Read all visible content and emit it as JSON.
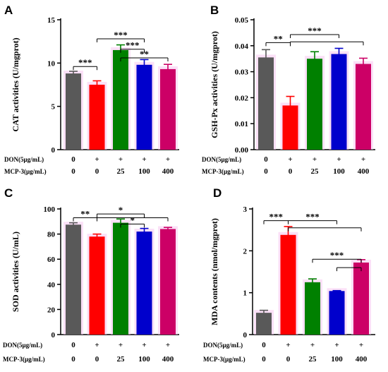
{
  "chart_data": [
    {
      "type": "bar",
      "panel": "A",
      "ylabel": "CAT activities (U/mgprot)",
      "ylim": [
        0,
        15
      ],
      "yticks": [
        "0",
        "5",
        "10",
        "15"
      ],
      "values": [
        8.8,
        7.5,
        11.5,
        9.8,
        9.3
      ],
      "errors": [
        0.25,
        0.45,
        0.6,
        0.6,
        0.55
      ],
      "colors": [
        "#595959",
        "#ff0000",
        "#008000",
        "#0000cc",
        "#cc0066"
      ],
      "significance": [
        {
          "label": "***",
          "from": 0,
          "to": 1,
          "y": 9.6
        },
        {
          "label": "***",
          "from": 1,
          "to": 3,
          "y": 12.8
        },
        {
          "label": "***",
          "from": 2,
          "to": 3,
          "y": 11.6
        },
        {
          "label": "**",
          "from": 2,
          "to": 4,
          "y": 10.6
        }
      ],
      "treatments": [
        {
          "label": "DON(5μg/mL)",
          "values": [
            "0",
            "+",
            "+",
            "+",
            "+"
          ]
        },
        {
          "label": "MCP-3(μg/mL)",
          "values": [
            "0",
            "0",
            "25",
            "100",
            "400"
          ]
        }
      ]
    },
    {
      "type": "bar",
      "panel": "B",
      "ylabel": "GSH-Px activities (U/mgprot)",
      "ylim": [
        0,
        0.05
      ],
      "yticks": [
        "0.00",
        "0.01",
        "0.02",
        "0.03",
        "0.04",
        "0.05"
      ],
      "values": [
        0.0355,
        0.017,
        0.035,
        0.0368,
        0.033
      ],
      "errors": [
        0.003,
        0.0035,
        0.0027,
        0.0022,
        0.0022
      ],
      "colors": [
        "#595959",
        "#ff0000",
        "#008000",
        "#0000cc",
        "#cc0066"
      ],
      "significance": [
        {
          "label": "**",
          "from": 0,
          "to": 1,
          "y": 0.0412
        },
        {
          "label": "***",
          "from": 1,
          "to": 3,
          "y": 0.0443
        },
        {
          "label": "",
          "from": 1,
          "to": 4,
          "y": 0.0415
        }
      ],
      "treatments": [
        {
          "label": "DON(5μg/mL)",
          "values": [
            "0",
            "+",
            "+",
            "+",
            "+"
          ]
        },
        {
          "label": "MCP-3(μg/mL)",
          "values": [
            "0",
            "0",
            "25",
            "100",
            "400"
          ]
        }
      ]
    },
    {
      "type": "bar",
      "panel": "C",
      "ylabel": "SOD activities (U/mL)",
      "ylim": [
        0,
        100
      ],
      "yticks": [
        "0",
        "20",
        "40",
        "60",
        "80",
        "100"
      ],
      "values": [
        87.5,
        78,
        89,
        82,
        84
      ],
      "errors": [
        1.5,
        2,
        3,
        2.5,
        1.3
      ],
      "colors": [
        "#595959",
        "#ff0000",
        "#008000",
        "#0000cc",
        "#cc0066"
      ],
      "significance": [
        {
          "label": "**",
          "from": 0,
          "to": 1,
          "y": 93
        },
        {
          "label": "*",
          "from": 1,
          "to": 3,
          "y": 96
        },
        {
          "label": "",
          "from": 1,
          "to": 4,
          "y": 93
        },
        {
          "label": "*",
          "from": 2,
          "to": 3,
          "y": 88
        }
      ],
      "treatments": [
        {
          "label": "DON(5μg/mL)",
          "values": [
            "0",
            "+",
            "+",
            "+",
            "+"
          ]
        },
        {
          "label": "MCP-3(μg/mL)",
          "values": [
            "0",
            "0",
            "25",
            "100",
            "400"
          ]
        }
      ]
    },
    {
      "type": "bar",
      "panel": "D",
      "ylabel": "MDA contents (nmol/mgprot)",
      "ylim": [
        0,
        3
      ],
      "yticks": [
        "0",
        "1",
        "2",
        "3"
      ],
      "values": [
        0.52,
        2.38,
        1.25,
        1.04,
        1.72
      ],
      "errors": [
        0.06,
        0.2,
        0.08,
        0.01,
        0.07
      ],
      "colors": [
        "#595959",
        "#ff0000",
        "#008000",
        "#0000cc",
        "#cc0066"
      ],
      "significance": [
        {
          "label": "***",
          "from": 0,
          "to": 1,
          "y": 2.72
        },
        {
          "label": "***",
          "from": 1,
          "to": 3,
          "y": 2.72
        },
        {
          "label": "",
          "from": 1,
          "to": 4,
          "y": 2.55
        },
        {
          "label": "***",
          "from": 2,
          "to": 4,
          "y": 1.8
        },
        {
          "label": "",
          "from": 3,
          "to": 4,
          "y": 1.6
        }
      ],
      "treatments": [
        {
          "label": "DON(5μg/mL)",
          "values": [
            "0",
            "+",
            "+",
            "+",
            "+"
          ]
        },
        {
          "label": "MCP-3(μg/mL)",
          "values": [
            "0",
            "0",
            "25",
            "100",
            "400"
          ]
        }
      ]
    }
  ]
}
